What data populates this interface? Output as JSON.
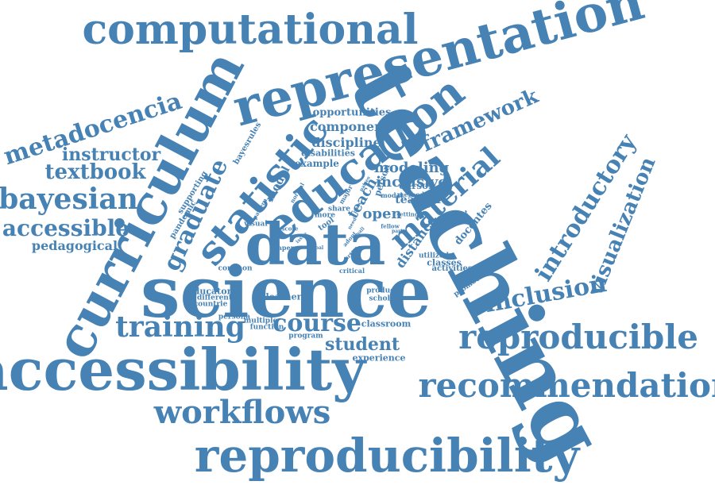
{
  "colors": {
    "word": "#4682b4",
    "background": "#ffffff"
  },
  "words": [
    {
      "text": "teaching"
    },
    {
      "text": "science"
    },
    {
      "text": "accessibility"
    },
    {
      "text": "reproducibility"
    },
    {
      "text": "data"
    },
    {
      "text": "curriculum"
    },
    {
      "text": "representation"
    },
    {
      "text": "computational"
    },
    {
      "text": "education"
    },
    {
      "text": "statistic"
    },
    {
      "text": "recommendation"
    },
    {
      "text": "reproducible"
    },
    {
      "text": "workflows"
    },
    {
      "text": "material"
    },
    {
      "text": "bayesian"
    },
    {
      "text": "metadocencia"
    },
    {
      "text": "training"
    },
    {
      "text": "accessible"
    },
    {
      "text": "graduate"
    },
    {
      "text": "inclusion"
    },
    {
      "text": "introductory"
    },
    {
      "text": "visualization"
    },
    {
      "text": "textbook"
    },
    {
      "text": "course"
    },
    {
      "text": "framework"
    },
    {
      "text": "student"
    },
    {
      "text": "instructor"
    },
    {
      "text": "pedagogical"
    },
    {
      "text": "modeling"
    },
    {
      "text": "inclusive"
    },
    {
      "text": "component"
    },
    {
      "text": "discipline"
    },
    {
      "text": "distance"
    },
    {
      "text": "open"
    },
    {
      "text": "teach"
    },
    {
      "text": "teacher"
    },
    {
      "text": "model"
    },
    {
      "text": "opportunities"
    },
    {
      "text": "example"
    },
    {
      "text": "disabilities"
    },
    {
      "text": "cursos"
    },
    {
      "text": "docentes"
    },
    {
      "text": "classroom"
    },
    {
      "text": "experience"
    },
    {
      "text": "learner"
    },
    {
      "text": "educator"
    },
    {
      "text": "program"
    },
    {
      "text": "multiple"
    },
    {
      "text": "function"
    },
    {
      "text": "persona"
    },
    {
      "text": "activities"
    },
    {
      "text": "classes"
    },
    {
      "text": "utilized"
    },
    {
      "text": "product"
    },
    {
      "text": "scholar"
    },
    {
      "text": "promoter"
    },
    {
      "text": "different"
    },
    {
      "text": "countrie"
    },
    {
      "text": "common"
    },
    {
      "text": "critical"
    },
    {
      "text": "visual"
    },
    {
      "text": "paper"
    },
    {
      "text": "pandemic"
    },
    {
      "text": "supporting"
    },
    {
      "text": "bayesrules"
    },
    {
      "text": "person"
    },
    {
      "text": "share"
    },
    {
      "text": "major"
    },
    {
      "text": "modal"
    },
    {
      "text": "method"
    },
    {
      "text": "setting"
    },
    {
      "text": "present"
    },
    {
      "text": "specific"
    },
    {
      "text": "tool"
    },
    {
      "text": "more"
    },
    {
      "text": "pattern"
    },
    {
      "text": "normal"
    },
    {
      "text": "score"
    },
    {
      "text": "fellow"
    },
    {
      "text": "article"
    },
    {
      "text": "adopt"
    },
    {
      "text": "pass"
    },
    {
      "text": "need"
    },
    {
      "text": "part"
    },
    {
      "text": "goal"
    },
    {
      "text": "issue"
    },
    {
      "text": "paises"
    },
    {
      "text": "small"
    }
  ]
}
